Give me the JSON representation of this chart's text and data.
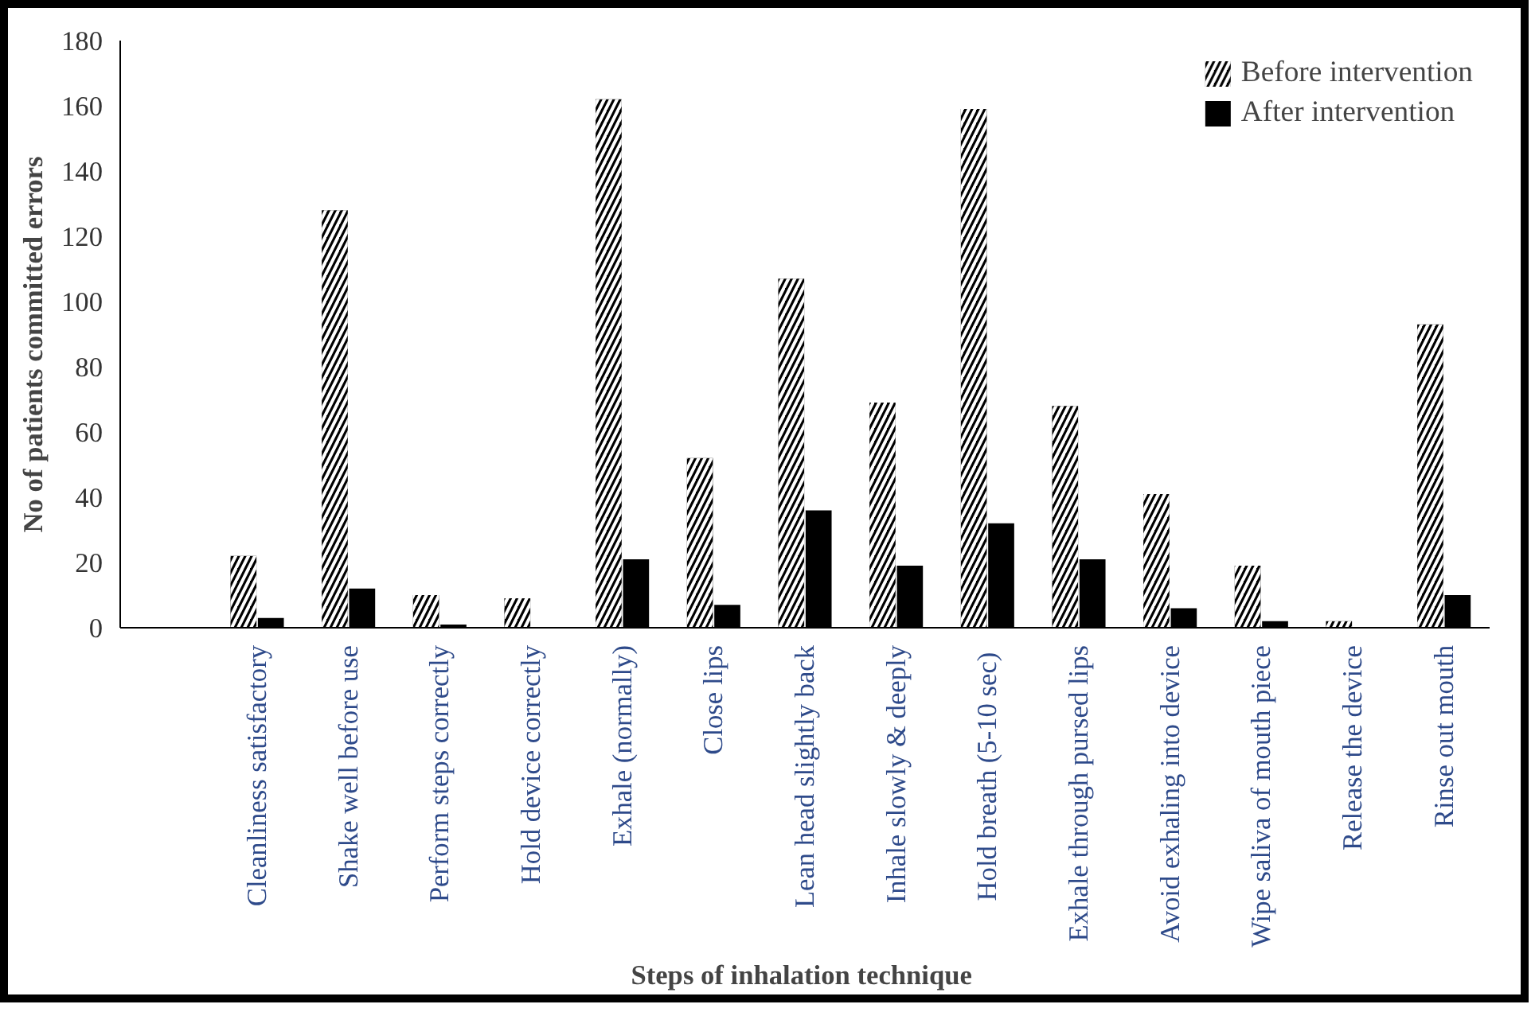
{
  "chart_data": {
    "type": "bar",
    "xlabel": "Steps of inhalation  technique",
    "ylabel": "No of patients  committed   errors",
    "categories": [
      null,
      "Cleanliness satisfactory",
      "Shake well before use",
      "Perform steps correctly",
      "Hold device correctly",
      "Exhale (normally)",
      "Close lips",
      "Lean head slightly back",
      "Inhale slowly & deeply",
      "Hold breath  (5-10 sec)",
      "Exhale through pursed lips",
      "Avoid exhaling into device",
      "Wipe saliva of mouth piece",
      "Release the device",
      "Rinse out mouth"
    ],
    "series": [
      {
        "name": "Before intervention",
        "color": "#000000",
        "values": [
          null,
          22,
          128,
          10,
          9,
          162,
          52,
          107,
          69,
          159,
          68,
          41,
          19,
          2,
          93
        ]
      },
      {
        "name": "After intervention",
        "color": "#000000",
        "values": [
          null,
          3,
          12,
          1,
          0,
          21,
          7,
          36,
          19,
          32,
          21,
          6,
          2,
          0,
          10
        ]
      }
    ],
    "ylim": [
      0,
      180
    ],
    "yticks": [
      0,
      20,
      40,
      60,
      80,
      100,
      120,
      140,
      160,
      180
    ],
    "grid": false,
    "legend": "top right"
  }
}
